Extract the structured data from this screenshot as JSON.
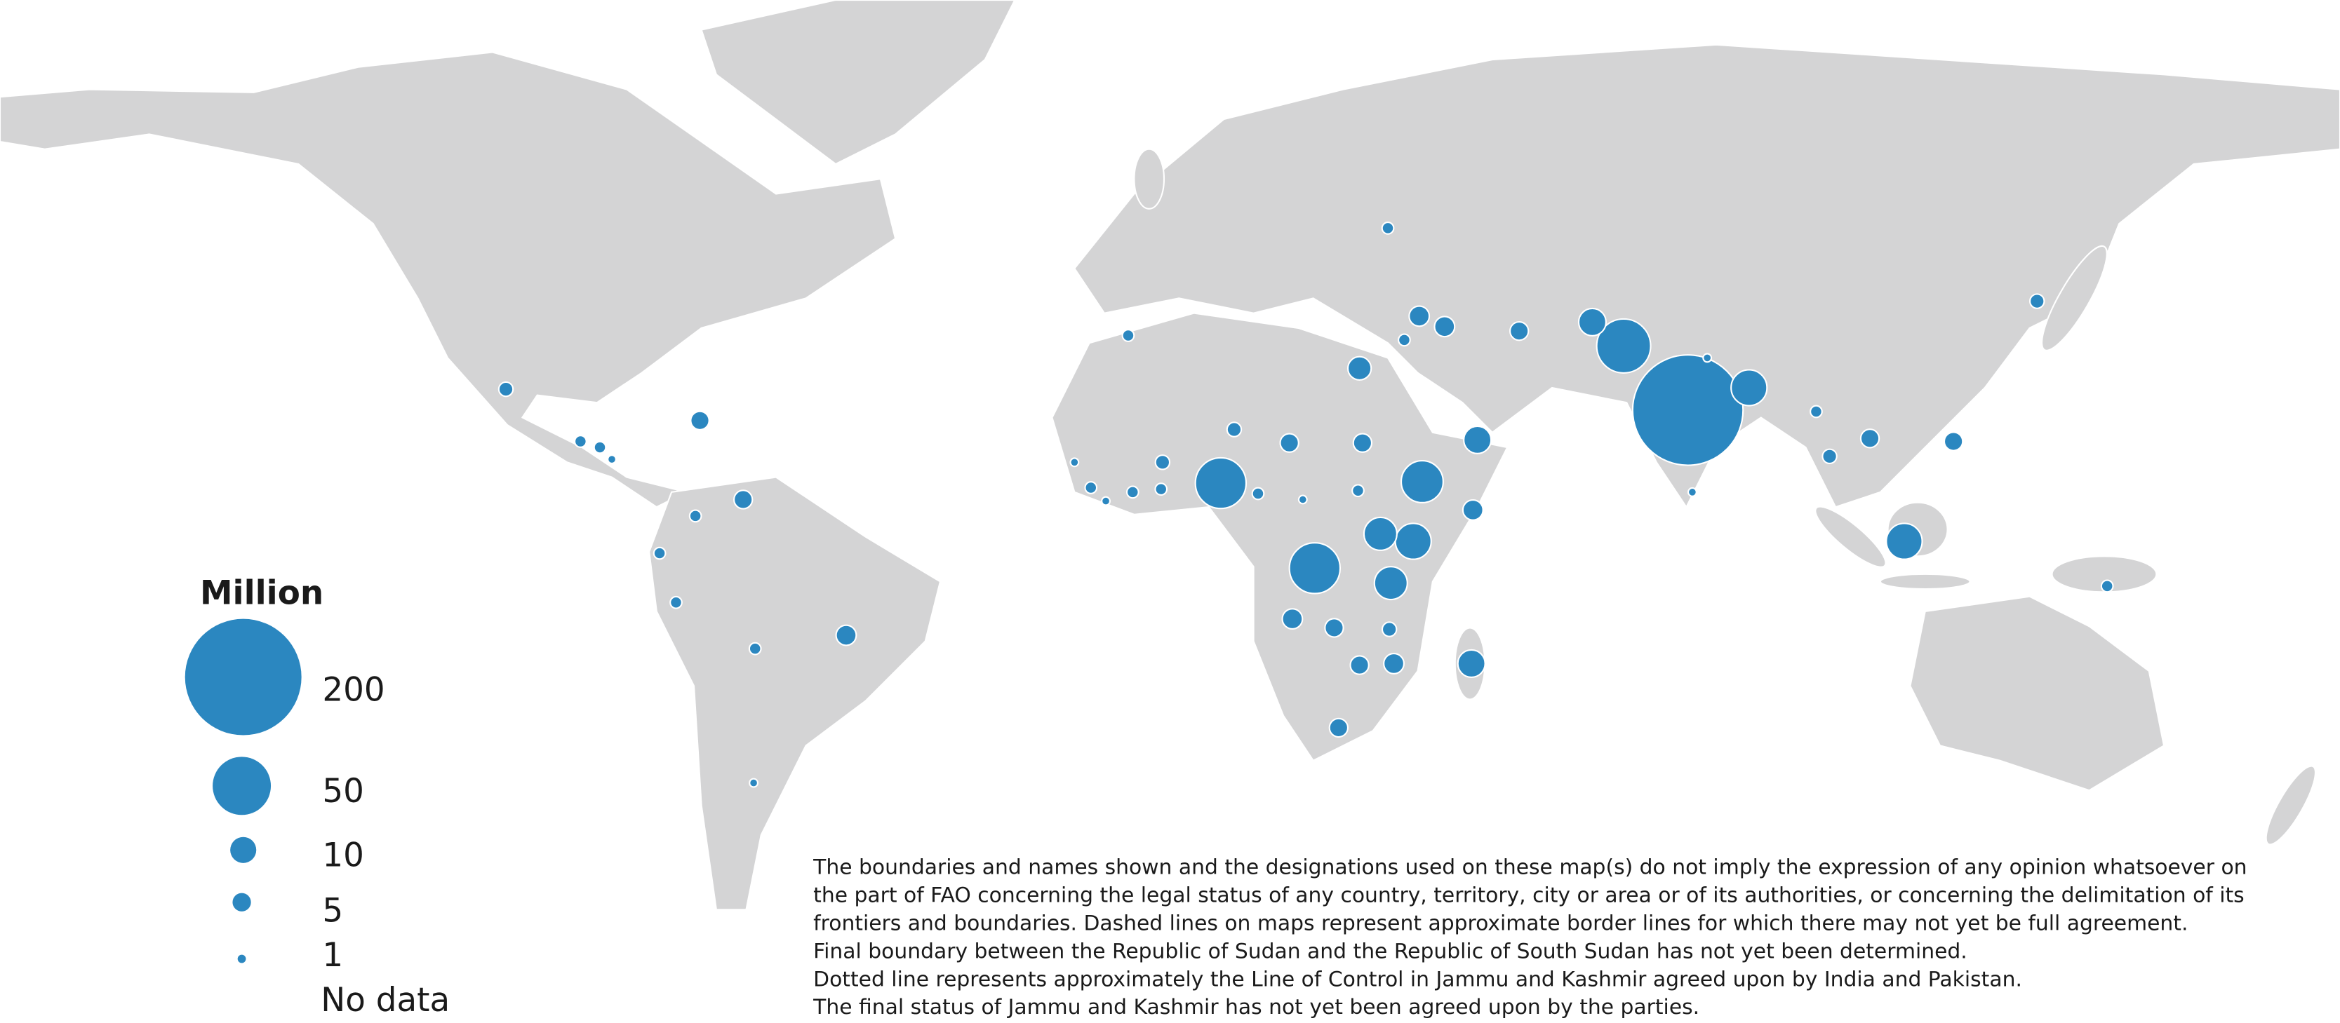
{
  "legend": {
    "title": "Million",
    "items": [
      {
        "value": 200,
        "label": "200"
      },
      {
        "value": 50,
        "label": "50"
      },
      {
        "value": 10,
        "label": "10"
      },
      {
        "value": 5,
        "label": "5"
      },
      {
        "value": 1,
        "label": "1"
      }
    ],
    "no_data": "No data"
  },
  "bubble_values": [
    180,
    43,
    19,
    11,
    5,
    6,
    6,
    2,
    2,
    8,
    11,
    26,
    5,
    5,
    3,
    38,
    38,
    16,
    19,
    16,
    6,
    6,
    5,
    6,
    3,
    5,
    11,
    5,
    19,
    5,
    5,
    2,
    3,
    3,
    2,
    1,
    6,
    2,
    5,
    2,
    2,
    2,
    3,
    5,
    2,
    2,
    1,
    2,
    3,
    1,
    2,
    2,
    2,
    1,
    2,
    1,
    2,
    1,
    1
  ],
  "disclaimer": [
    "The boundaries and names shown and the designations used on these map(s) do not imply the expression of any opinion whatsoever on",
    "the part of FAO concerning the legal status of any country, territory, city or area or of its authorities, or concerning the delimitation of its",
    "frontiers and boundaries. Dashed lines on maps represent approximate border lines for which there may not yet be full agreement.",
    "Final boundary between the Republic of Sudan and the Republic of South Sudan has not yet been determined.",
    "Dotted line represents approximately the Line of Control in Jammu and Kashmir agreed upon by India and Pakistan.",
    "The final status of Jammu and Kashmir has not yet been agreed upon by the parties."
  ]
}
